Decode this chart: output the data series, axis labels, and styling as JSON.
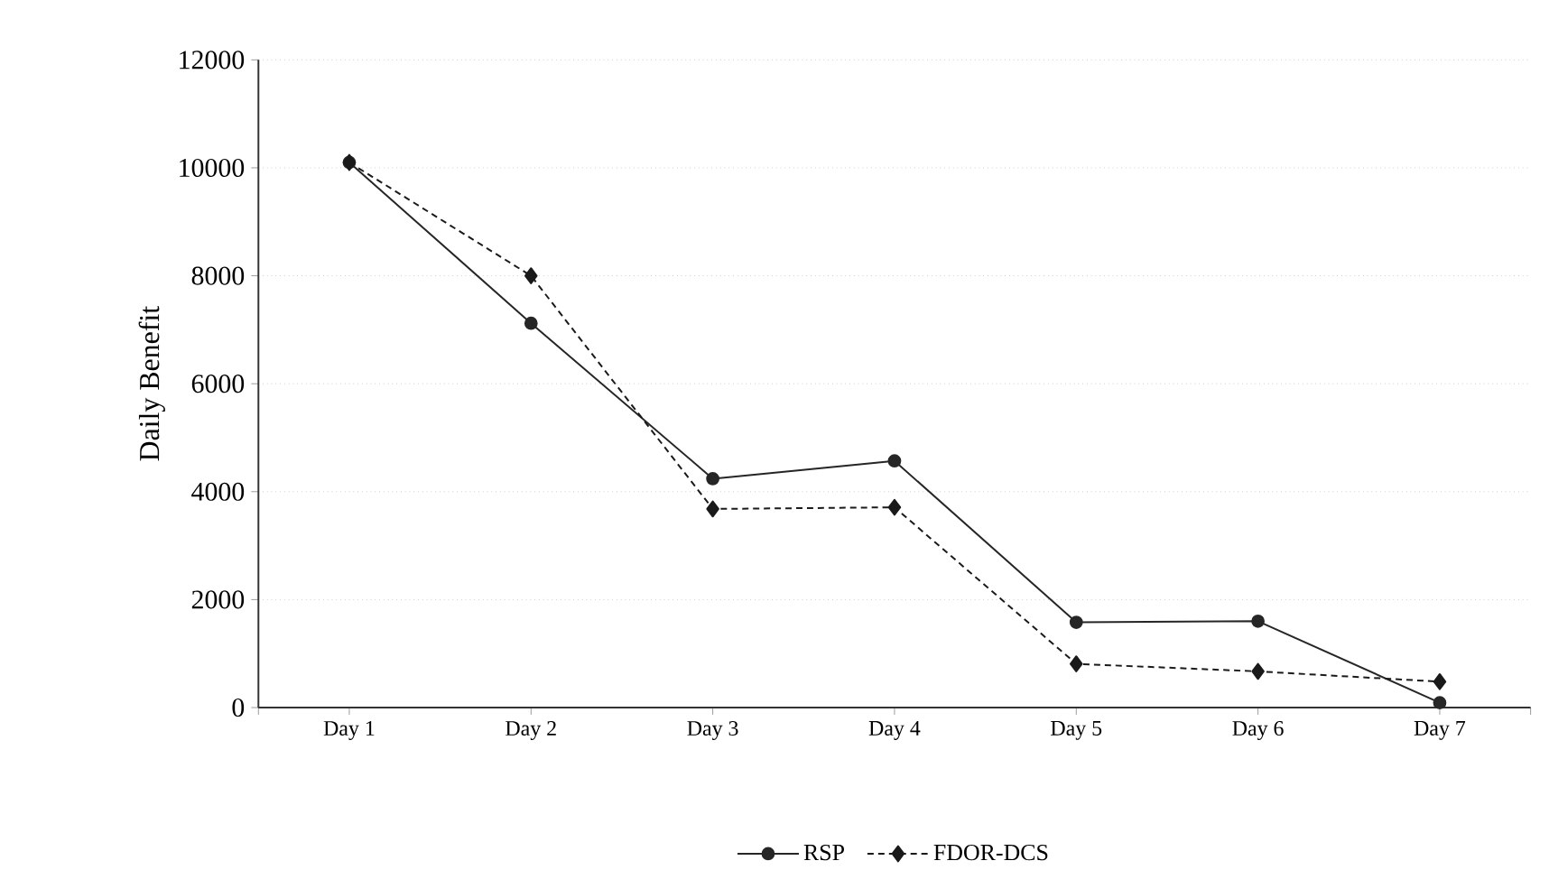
{
  "chart_data": {
    "type": "line",
    "ylabel": "Daily Benefit",
    "categories": [
      "Day 1",
      "Day 2",
      "Day 3",
      "Day 4",
      "Day 5",
      "Day 6",
      "Day 7"
    ],
    "series": [
      {
        "name": "RSP",
        "color": "#262626",
        "marker": "circle",
        "line_style": "solid",
        "values": [
          10100,
          7120,
          4240,
          4570,
          1580,
          1600,
          90
        ]
      },
      {
        "name": "FDOR-DCS",
        "color": "#1a1a1a",
        "marker": "diamond",
        "line_style": "dashed",
        "values": [
          10100,
          8000,
          3680,
          3710,
          810,
          670,
          480
        ]
      }
    ],
    "ylim": [
      0,
      12000
    ],
    "yticks": [
      0,
      2000,
      4000,
      6000,
      8000,
      10000,
      12000
    ],
    "grid": "y",
    "legend": "bottom"
  }
}
